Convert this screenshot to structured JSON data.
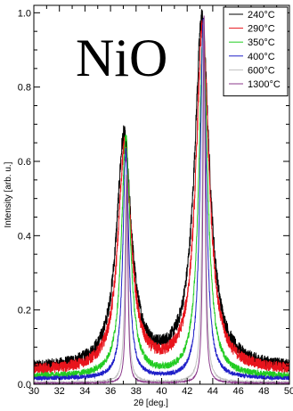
{
  "chart_data": {
    "type": "line",
    "title": "NiO",
    "xlabel": "2θ [deg.]",
    "ylabel": "Intensity [arb. u.]",
    "xlim": [
      30,
      50
    ],
    "ylim": [
      0,
      1.02
    ],
    "x_ticks": [
      "30",
      "32",
      "34",
      "36",
      "38",
      "40",
      "42",
      "44",
      "46",
      "48",
      "50"
    ],
    "y_ticks": [
      "0.0",
      "0.2",
      "0.4",
      "0.6",
      "0.8",
      "1.0"
    ],
    "grid": false,
    "legend_position": "top-right",
    "series": [
      {
        "name": "240°C",
        "color": "#000000",
        "baseline": 0.04,
        "peak1": {
          "center": 37.05,
          "height": 0.62,
          "width": 0.7
        },
        "peak2": {
          "center": 43.15,
          "height": 0.94,
          "width": 0.7
        },
        "noise": 0.022
      },
      {
        "name": "290°C",
        "color": "#e8141c",
        "baseline": 0.035,
        "peak1": {
          "center": 37.1,
          "height": 0.6,
          "width": 0.62
        },
        "peak2": {
          "center": 43.2,
          "height": 0.92,
          "width": 0.62
        },
        "noise": 0.02
      },
      {
        "name": "350°C",
        "color": "#22cc22",
        "baseline": 0.02,
        "peak1": {
          "center": 37.2,
          "height": 0.64,
          "width": 0.42
        },
        "peak2": {
          "center": 43.25,
          "height": 0.92,
          "width": 0.42
        },
        "noise": 0.012
      },
      {
        "name": "400°C",
        "color": "#2020c8",
        "baseline": 0.015,
        "peak1": {
          "center": 37.2,
          "height": 0.61,
          "width": 0.28
        },
        "peak2": {
          "center": 43.25,
          "height": 0.96,
          "width": 0.28
        },
        "noise": 0.008
      },
      {
        "name": "600°C",
        "color": "#c0c0c0",
        "baseline": 0.005,
        "peak1": {
          "center": 37.25,
          "height": 0.56,
          "width": 0.14
        },
        "peak2": {
          "center": 43.3,
          "height": 0.98,
          "width": 0.14
        },
        "noise": 0.003
      },
      {
        "name": "1300°C",
        "color": "#8b3a8b",
        "baseline": 0.003,
        "peak1": {
          "center": 37.28,
          "height": 0.56,
          "width": 0.1
        },
        "peak2": {
          "center": 43.32,
          "height": 0.99,
          "width": 0.1
        },
        "noise": 0.002
      }
    ]
  }
}
